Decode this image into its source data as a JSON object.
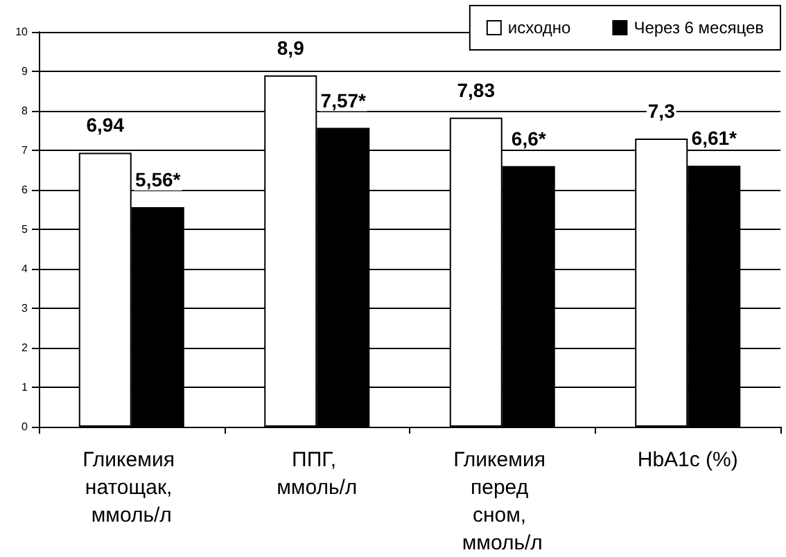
{
  "chart_data": {
    "type": "bar",
    "categories": [
      "Гликемия натощак, ммоль/л",
      "ППГ, ммоль/л",
      "Гликемия перед сном, ммоль/л",
      "HbA1c (%)"
    ],
    "series": [
      {
        "name": "исходно",
        "color": "#ffffff",
        "values": [
          6.94,
          8.9,
          7.83,
          7.3
        ],
        "value_labels": [
          "6,94",
          "8,9",
          "7,83",
          "7,3"
        ]
      },
      {
        "name": "Через 6 месяцев",
        "color": "#000000",
        "values": [
          5.56,
          7.57,
          6.6,
          6.61
        ],
        "value_labels": [
          "5,56*",
          "7,57*",
          "6,6*",
          "6,61*"
        ]
      }
    ],
    "ylim": [
      0,
      10
    ],
    "yticks": [
      0,
      1,
      2,
      3,
      4,
      5,
      6,
      7,
      8,
      9,
      10
    ],
    "grid": "y",
    "legend": "top right"
  }
}
